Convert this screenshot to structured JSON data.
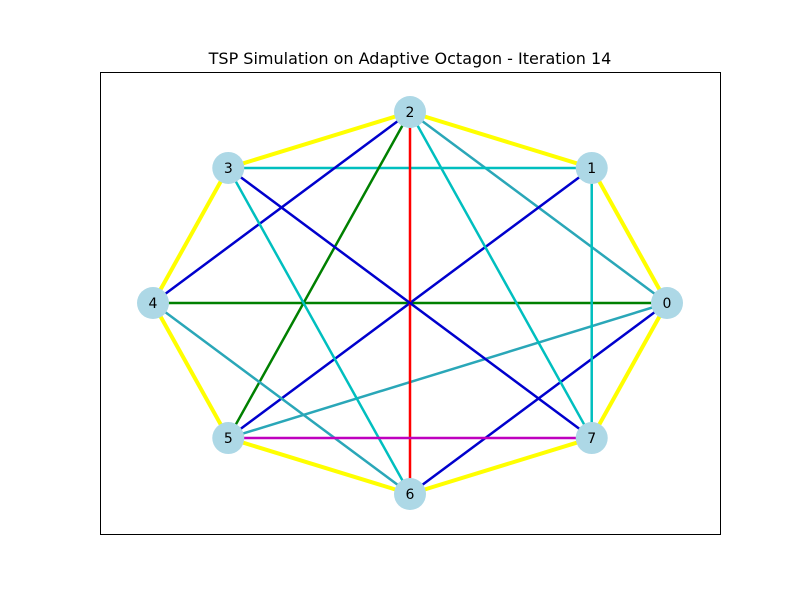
{
  "title": "TSP Simulation on Adaptive Octagon - Iteration 14",
  "colors": {
    "node_fill": "#add8e6",
    "frame": "#000000",
    "yellow": "#ffff00",
    "cyan": "#00bfbf",
    "teal": "#2aa7b8",
    "blue": "#0000cd",
    "green": "#008000",
    "red": "#ff0000",
    "magenta": "#bf00bf"
  },
  "nodes": [
    {
      "id": "0",
      "label": "0"
    },
    {
      "id": "1",
      "label": "1"
    },
    {
      "id": "2",
      "label": "2"
    },
    {
      "id": "3",
      "label": "3"
    },
    {
      "id": "4",
      "label": "4"
    },
    {
      "id": "5",
      "label": "5"
    },
    {
      "id": "6",
      "label": "6"
    },
    {
      "id": "7",
      "label": "7"
    }
  ],
  "edges": [
    {
      "from": 0,
      "to": 2,
      "color": "teal"
    },
    {
      "from": 0,
      "to": 5,
      "color": "teal"
    },
    {
      "from": 0,
      "to": 4,
      "color": "green"
    },
    {
      "from": 0,
      "to": 6,
      "color": "blue"
    },
    {
      "from": 1,
      "to": 3,
      "color": "cyan"
    },
    {
      "from": 1,
      "to": 7,
      "color": "cyan"
    },
    {
      "from": 1,
      "to": 5,
      "color": "blue"
    },
    {
      "from": 2,
      "to": 4,
      "color": "blue"
    },
    {
      "from": 2,
      "to": 5,
      "color": "green"
    },
    {
      "from": 2,
      "to": 6,
      "color": "red"
    },
    {
      "from": 2,
      "to": 7,
      "color": "cyan"
    },
    {
      "from": 3,
      "to": 6,
      "color": "cyan"
    },
    {
      "from": 3,
      "to": 7,
      "color": "blue"
    },
    {
      "from": 4,
      "to": 6,
      "color": "teal"
    },
    {
      "from": 5,
      "to": 7,
      "color": "magenta"
    },
    {
      "from": 0,
      "to": 1,
      "color": "yellow"
    },
    {
      "from": 1,
      "to": 2,
      "color": "yellow"
    },
    {
      "from": 2,
      "to": 3,
      "color": "yellow"
    },
    {
      "from": 3,
      "to": 4,
      "color": "yellow"
    },
    {
      "from": 4,
      "to": 5,
      "color": "yellow"
    },
    {
      "from": 5,
      "to": 6,
      "color": "yellow"
    },
    {
      "from": 6,
      "to": 7,
      "color": "yellow"
    },
    {
      "from": 7,
      "to": 0,
      "color": "yellow"
    }
  ]
}
